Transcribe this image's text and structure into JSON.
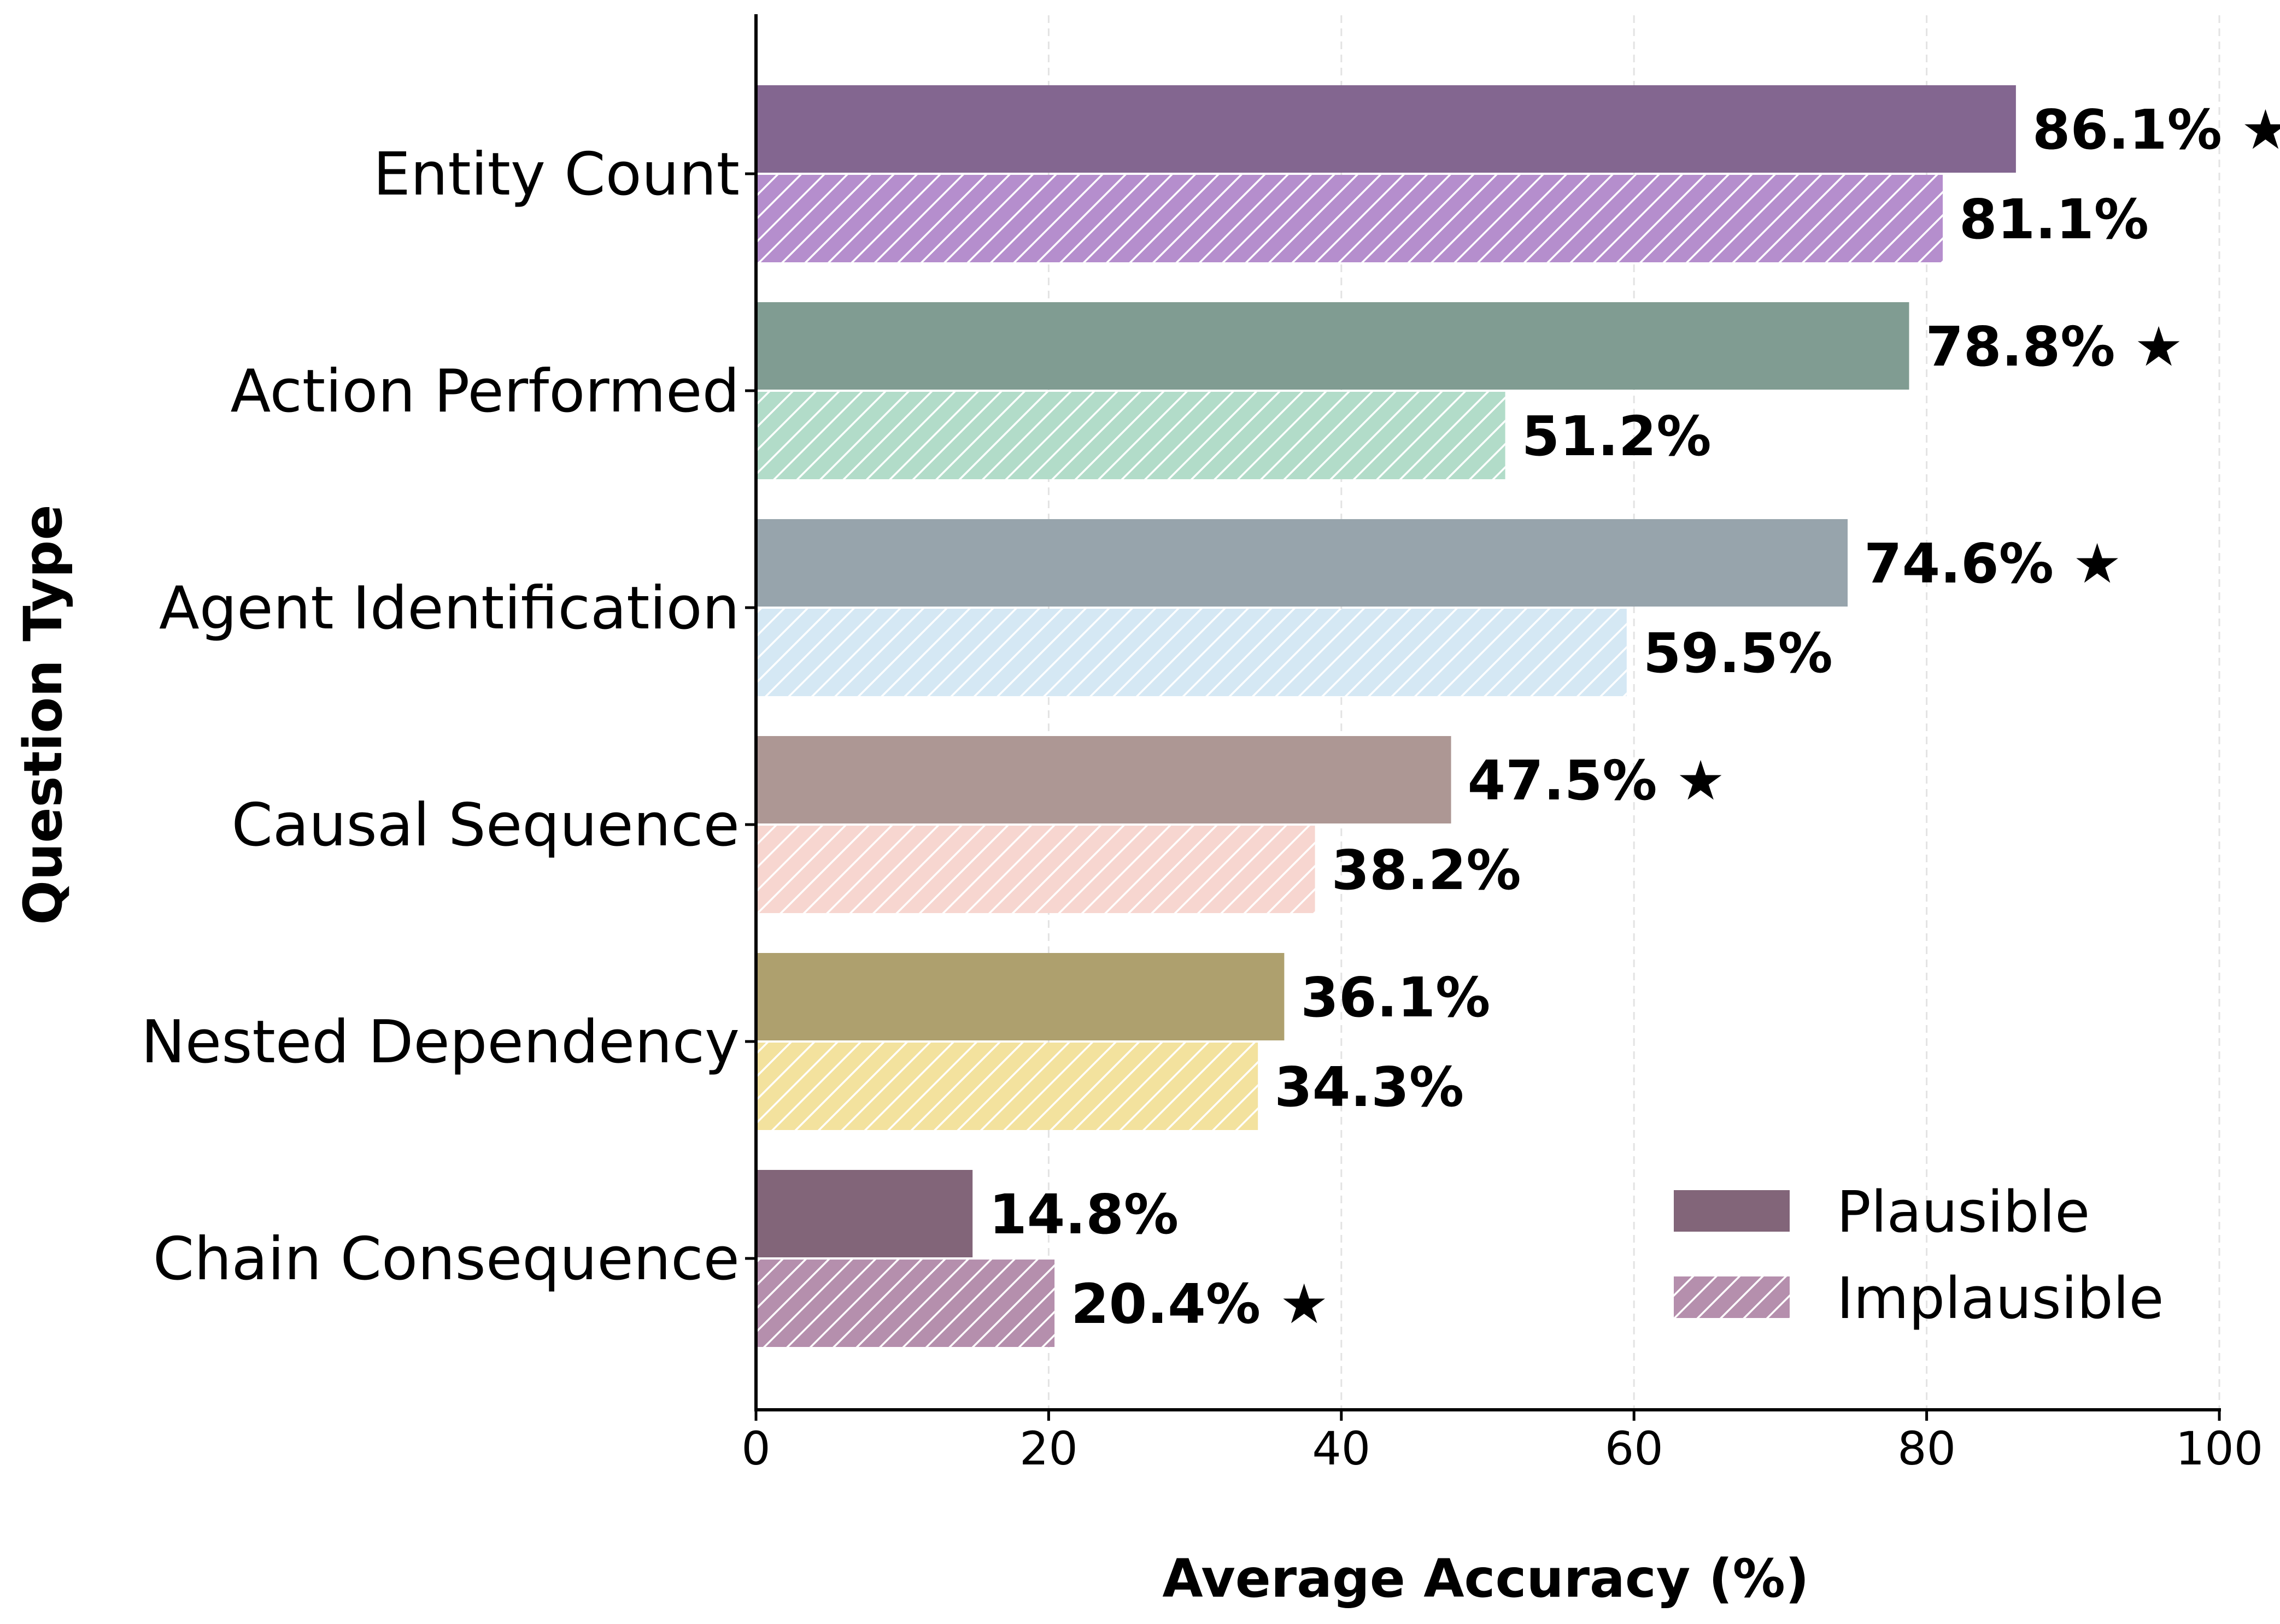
{
  "chart_data": {
    "type": "bar",
    "orientation": "horizontal",
    "categories": [
      "Entity Count",
      "Action Performed",
      "Agent Identification",
      "Causal Sequence",
      "Nested Dependency",
      "Chain Consequence"
    ],
    "series": [
      {
        "name": "Plausible",
        "values": [
          86.1,
          78.8,
          74.6,
          47.5,
          36.1,
          14.8
        ],
        "labels": [
          "86.1%",
          "78.8%",
          "74.6%",
          "47.5%",
          "36.1%",
          "14.8%"
        ],
        "starred": [
          true,
          true,
          true,
          true,
          false,
          false
        ],
        "colors": [
          "#836690",
          "#809c92",
          "#97a4ac",
          "#ad9794",
          "#aea06e",
          "#826579"
        ],
        "pattern": "solid"
      },
      {
        "name": "Implausible",
        "values": [
          81.1,
          51.2,
          59.5,
          38.2,
          34.3,
          20.4
        ],
        "labels": [
          "81.1%",
          "51.2%",
          "59.5%",
          "38.2%",
          "34.3%",
          "20.4%"
        ],
        "starred": [
          false,
          false,
          false,
          false,
          false,
          true
        ],
        "colors": [
          "#b58ecd",
          "#b2dcc9",
          "#d5e8f4",
          "#f7d6d0",
          "#f3e29e",
          "#b58fad"
        ],
        "pattern": "hatched"
      }
    ],
    "star_symbol": "★",
    "xlabel": "Average Accuracy (%)",
    "ylabel": "Question Type",
    "xlim": [
      0,
      100
    ],
    "xticks": [
      0,
      20,
      40,
      60,
      80,
      100
    ],
    "grid": "vertical dashed",
    "legend_position": "bottom-right",
    "legend_colors": [
      "#826579",
      "#b58fad"
    ]
  }
}
